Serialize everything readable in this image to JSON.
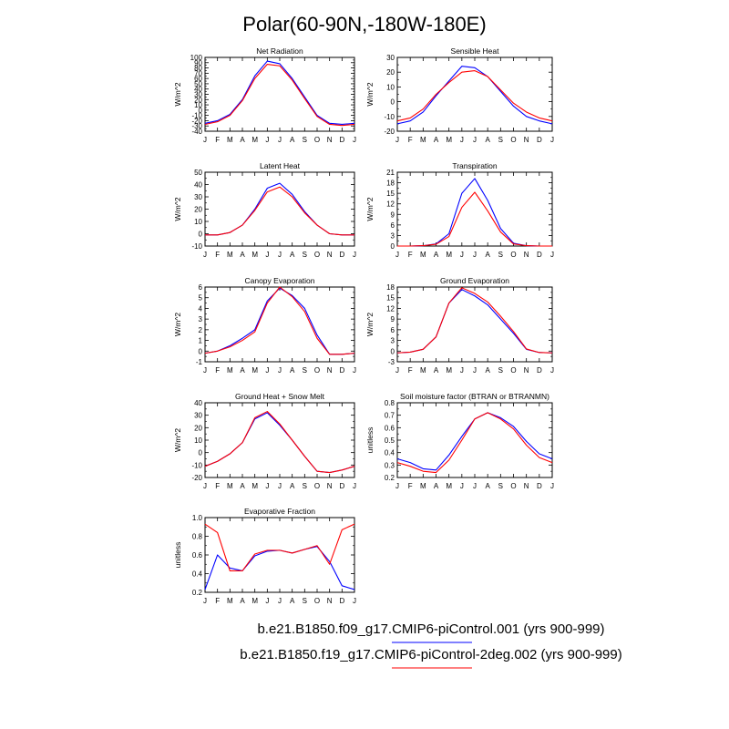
{
  "figure_title": "Polar(60-90N,-180W-180E)",
  "legend": [
    {
      "label": "b.e21.B1850.f09_g17.CMIP6-piControl.001 (yrs 900-999)",
      "color": "#0000ff"
    },
    {
      "label": "b.e21.B1850.f19_g17.CMIP6-piControl-2deg.002 (yrs 900-999)",
      "color": "#ff0000"
    }
  ],
  "chart_data": [
    {
      "type": "line",
      "title": "Net Radiation",
      "xlabel": "",
      "ylabel": "W/m^2",
      "categories": [
        "J",
        "F",
        "M",
        "A",
        "M",
        "J",
        "J",
        "A",
        "S",
        "O",
        "N",
        "D",
        "J"
      ],
      "ylim": [
        -40,
        100
      ],
      "yticks": [
        -40,
        -30,
        -20,
        -10,
        0,
        10,
        20,
        30,
        40,
        50,
        60,
        70,
        80,
        90,
        100
      ],
      "series": [
        {
          "name": "b.e21.B1850.f09_g17.CMIP6-piControl.001",
          "color": "#0000ff",
          "values": [
            -25,
            -20,
            -8,
            20,
            65,
            93,
            88,
            60,
            25,
            -10,
            -25,
            -27,
            -25
          ]
        },
        {
          "name": "b.e21.B1850.f19_g17.CMIP6-piControl-2deg.002",
          "color": "#ff0000",
          "values": [
            -27,
            -22,
            -10,
            18,
            60,
            87,
            84,
            57,
            22,
            -12,
            -27,
            -29,
            -27
          ]
        }
      ]
    },
    {
      "type": "line",
      "title": "Sensible Heat",
      "xlabel": "",
      "ylabel": "W/m^2",
      "categories": [
        "J",
        "F",
        "M",
        "A",
        "M",
        "J",
        "J",
        "A",
        "S",
        "O",
        "N",
        "D",
        "J"
      ],
      "ylim": [
        -20,
        30
      ],
      "yticks": [
        -20,
        -10,
        0,
        10,
        20,
        30
      ],
      "series": [
        {
          "name": "b.e21.B1850.f09_g17.CMIP6-piControl.001",
          "color": "#0000ff",
          "values": [
            -15,
            -13,
            -7,
            4,
            14,
            24,
            23,
            17,
            7,
            -3,
            -10,
            -13,
            -15
          ]
        },
        {
          "name": "b.e21.B1850.f19_g17.CMIP6-piControl-2deg.002",
          "color": "#ff0000",
          "values": [
            -13,
            -11,
            -5,
            5,
            13,
            20,
            21,
            17,
            8,
            -1,
            -7,
            -11,
            -13
          ]
        }
      ]
    },
    {
      "type": "line",
      "title": "Latent Heat",
      "xlabel": "",
      "ylabel": "W/m^2",
      "categories": [
        "J",
        "F",
        "M",
        "A",
        "M",
        "J",
        "J",
        "A",
        "S",
        "O",
        "N",
        "D",
        "J"
      ],
      "ylim": [
        -10,
        50
      ],
      "yticks": [
        -10,
        0,
        10,
        20,
        30,
        40,
        50
      ],
      "series": [
        {
          "name": "b.e21.B1850.f09_g17.CMIP6-piControl.001",
          "color": "#0000ff",
          "values": [
            -1,
            -1,
            1,
            7,
            20,
            37,
            41,
            32,
            18,
            7,
            0,
            -1,
            -1
          ]
        },
        {
          "name": "b.e21.B1850.f19_g17.CMIP6-piControl-2deg.002",
          "color": "#ff0000",
          "values": [
            -1,
            -1,
            1,
            7,
            19,
            34,
            38,
            30,
            17,
            7,
            0,
            -1,
            -1
          ]
        }
      ]
    },
    {
      "type": "line",
      "title": "Transpiration",
      "xlabel": "",
      "ylabel": "W/m^2",
      "categories": [
        "J",
        "F",
        "M",
        "A",
        "M",
        "J",
        "J",
        "A",
        "S",
        "O",
        "N",
        "D",
        "J"
      ],
      "ylim": [
        0,
        21
      ],
      "yticks": [
        0,
        3,
        6,
        9,
        12,
        15,
        18,
        21
      ],
      "series": [
        {
          "name": "b.e21.B1850.f09_g17.CMIP6-piControl.001",
          "color": "#0000ff",
          "values": [
            0,
            0,
            0.1,
            0.6,
            3.5,
            15,
            19.2,
            13,
            5,
            0.8,
            0.1,
            0,
            0
          ]
        },
        {
          "name": "b.e21.B1850.f19_g17.CMIP6-piControl-2deg.002",
          "color": "#ff0000",
          "values": [
            0,
            0,
            0.1,
            0.5,
            2.7,
            11,
            15.3,
            10,
            4,
            0.6,
            0.1,
            0,
            0
          ]
        }
      ]
    },
    {
      "type": "line",
      "title": "Canopy Evaporation",
      "xlabel": "",
      "ylabel": "W/m^2",
      "categories": [
        "J",
        "F",
        "M",
        "A",
        "M",
        "J",
        "J",
        "A",
        "S",
        "O",
        "N",
        "D",
        "J"
      ],
      "ylim": [
        -1,
        6
      ],
      "yticks": [
        -1.0,
        0.0,
        1.0,
        2.0,
        3.0,
        4.0,
        5.0,
        6.0
      ],
      "series": [
        {
          "name": "b.e21.B1850.f09_g17.CMIP6-piControl.001",
          "color": "#0000ff",
          "values": [
            -0.2,
            0.0,
            0.5,
            1.2,
            2.0,
            4.7,
            5.9,
            5.2,
            4.0,
            1.5,
            -0.3,
            -0.3,
            -0.2
          ]
        },
        {
          "name": "b.e21.B1850.f19_g17.CMIP6-piControl-2deg.002",
          "color": "#ff0000",
          "values": [
            -0.2,
            0.0,
            0.4,
            1.0,
            1.8,
            4.5,
            6.0,
            5.1,
            3.7,
            1.2,
            -0.3,
            -0.3,
            -0.2
          ]
        }
      ]
    },
    {
      "type": "line",
      "title": "Ground Evaporation",
      "xlabel": "",
      "ylabel": "W/m^2",
      "categories": [
        "J",
        "F",
        "M",
        "A",
        "M",
        "J",
        "J",
        "A",
        "S",
        "O",
        "N",
        "D",
        "J"
      ],
      "ylim": [
        -3,
        18
      ],
      "yticks": [
        -3,
        0,
        3,
        6,
        9,
        12,
        15,
        18
      ],
      "series": [
        {
          "name": "b.e21.B1850.f09_g17.CMIP6-piControl.001",
          "color": "#0000ff",
          "values": [
            -0.5,
            -0.3,
            0.5,
            4,
            13.5,
            17.3,
            15.5,
            13,
            9,
            5,
            0.5,
            -0.4,
            -0.5
          ]
        },
        {
          "name": "b.e21.B1850.f19_g17.CMIP6-piControl-2deg.002",
          "color": "#ff0000",
          "values": [
            -0.5,
            -0.3,
            0.5,
            4,
            13.5,
            17.8,
            16.2,
            13.8,
            9.8,
            5.5,
            0.6,
            -0.4,
            -0.5
          ]
        }
      ]
    },
    {
      "type": "line",
      "title": "Ground Heat + Snow Melt",
      "xlabel": "",
      "ylabel": "W/m^2",
      "categories": [
        "J",
        "F",
        "M",
        "A",
        "M",
        "J",
        "J",
        "A",
        "S",
        "O",
        "N",
        "D",
        "J"
      ],
      "ylim": [
        -20,
        40
      ],
      "yticks": [
        -20,
        -10,
        0,
        10,
        20,
        30,
        40
      ],
      "series": [
        {
          "name": "b.e21.B1850.f09_g17.CMIP6-piControl.001",
          "color": "#0000ff",
          "values": [
            -11,
            -7,
            -1,
            8,
            27,
            32,
            22,
            10,
            -3,
            -15,
            -16,
            -14,
            -11
          ]
        },
        {
          "name": "b.e21.B1850.f19_g17.CMIP6-piControl-2deg.002",
          "color": "#ff0000",
          "values": [
            -11,
            -7,
            -1,
            8,
            28,
            33,
            23,
            10,
            -3,
            -15,
            -16,
            -14,
            -11
          ]
        }
      ]
    },
    {
      "type": "line",
      "title": "Soil moisture factor (BTRAN or BTRANMN)",
      "xlabel": "",
      "ylabel": "unitless",
      "categories": [
        "J",
        "F",
        "M",
        "A",
        "M",
        "J",
        "J",
        "A",
        "S",
        "O",
        "N",
        "D",
        "J"
      ],
      "ylim": [
        0.2,
        0.8
      ],
      "yticks": [
        0.2,
        0.3,
        0.4,
        0.5,
        0.6,
        0.7,
        0.8
      ],
      "series": [
        {
          "name": "b.e21.B1850.f09_g17.CMIP6-piControl.001",
          "color": "#0000ff",
          "values": [
            0.35,
            0.32,
            0.27,
            0.26,
            0.38,
            0.53,
            0.67,
            0.72,
            0.68,
            0.61,
            0.49,
            0.39,
            0.35
          ]
        },
        {
          "name": "b.e21.B1850.f19_g17.CMIP6-piControl-2deg.002",
          "color": "#ff0000",
          "values": [
            0.32,
            0.29,
            0.25,
            0.24,
            0.34,
            0.5,
            0.67,
            0.72,
            0.67,
            0.59,
            0.46,
            0.36,
            0.32
          ]
        }
      ]
    },
    {
      "type": "line",
      "title": "Evaporative Fraction",
      "xlabel": "",
      "ylabel": "unitless",
      "categories": [
        "J",
        "F",
        "M",
        "A",
        "M",
        "J",
        "J",
        "A",
        "S",
        "O",
        "N",
        "D",
        "J"
      ],
      "ylim": [
        0.2,
        1.0
      ],
      "yticks": [
        0.2,
        0.4,
        0.6,
        0.8,
        1.0
      ],
      "series": [
        {
          "name": "b.e21.B1850.f09_g17.CMIP6-piControl.001",
          "color": "#0000ff",
          "values": [
            0.23,
            0.6,
            0.46,
            0.43,
            0.59,
            0.64,
            0.65,
            0.62,
            0.66,
            0.69,
            0.53,
            0.27,
            0.23
          ]
        },
        {
          "name": "b.e21.B1850.f19_g17.CMIP6-piControl-2deg.002",
          "color": "#ff0000",
          "values": [
            0.93,
            0.84,
            0.43,
            0.43,
            0.61,
            0.65,
            0.65,
            0.62,
            0.66,
            0.7,
            0.5,
            0.87,
            0.93
          ]
        }
      ]
    }
  ]
}
